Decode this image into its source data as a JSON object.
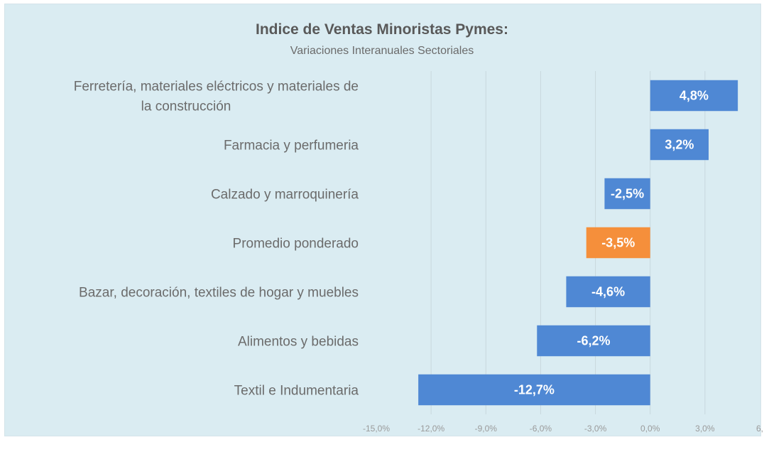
{
  "chart_data": {
    "type": "bar",
    "orientation": "horizontal",
    "title": "Indice de Ventas Minoristas Pymes:",
    "subtitle": "Variaciones Interanuales Sectoriales",
    "xlabel": "",
    "ylabel": "",
    "xlim": [
      -15,
      6
    ],
    "x_ticks": [
      -15,
      -12,
      -9,
      -6,
      -3,
      0,
      3,
      6
    ],
    "x_tick_labels": [
      "-15,0%",
      "-12,0%",
      "-9,0%",
      "-6,0%",
      "-3,0%",
      "0,0%",
      "3,0%",
      "6,"
    ],
    "grid": "vertical",
    "legend": "none",
    "categories": [
      [
        "Ferretería, materiales eléctricos y materiales de",
        "la construcción"
      ],
      [
        "Farmacia y perfumeria"
      ],
      [
        "Calzado y marroquinería"
      ],
      [
        "Promedio ponderado"
      ],
      [
        "Bazar, decoración, textiles de hogar y muebles"
      ],
      [
        "Alimentos y bebidas"
      ],
      [
        "Textil e Indumentaria"
      ]
    ],
    "values": [
      4.8,
      3.2,
      -2.5,
      -3.5,
      -4.6,
      -6.2,
      -12.7
    ],
    "data_labels": [
      "4,8%",
      "3,2%",
      "-2,5%",
      "-3,5%",
      "-4,6%",
      "-6,2%",
      "-12,7%"
    ],
    "highlight_index": 3,
    "colors": {
      "bar": "#4f88d4",
      "highlight": "#f58f3b",
      "background": "#daecf2",
      "grid": "#c9d8de"
    }
  }
}
